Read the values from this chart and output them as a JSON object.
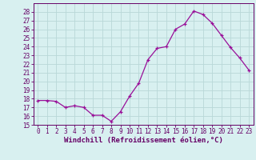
{
  "x": [
    0,
    1,
    2,
    3,
    4,
    5,
    6,
    7,
    8,
    9,
    10,
    11,
    12,
    13,
    14,
    15,
    16,
    17,
    18,
    19,
    20,
    21,
    22,
    23
  ],
  "y": [
    17.8,
    17.8,
    17.7,
    17.0,
    17.2,
    17.0,
    16.1,
    16.1,
    15.4,
    16.5,
    18.3,
    19.8,
    22.5,
    23.8,
    24.0,
    26.0,
    26.6,
    28.1,
    27.7,
    26.7,
    25.3,
    23.9,
    22.7,
    21.3
  ],
  "line_color": "#991099",
  "marker": "+",
  "bg_color": "#d8f0f0",
  "grid_color": "#b8d8d8",
  "xlabel": "Windchill (Refroidissement éolien,°C)",
  "xlabel_fontsize": 6.5,
  "ylim": [
    15,
    29
  ],
  "xlim": [
    -0.5,
    23.5
  ],
  "yticks": [
    15,
    16,
    17,
    18,
    19,
    20,
    21,
    22,
    23,
    24,
    25,
    26,
    27,
    28
  ],
  "xticks": [
    0,
    1,
    2,
    3,
    4,
    5,
    6,
    7,
    8,
    9,
    10,
    11,
    12,
    13,
    14,
    15,
    16,
    17,
    18,
    19,
    20,
    21,
    22,
    23
  ],
  "tick_fontsize": 5.5,
  "axis_color": "#660066",
  "spine_color": "#660066"
}
